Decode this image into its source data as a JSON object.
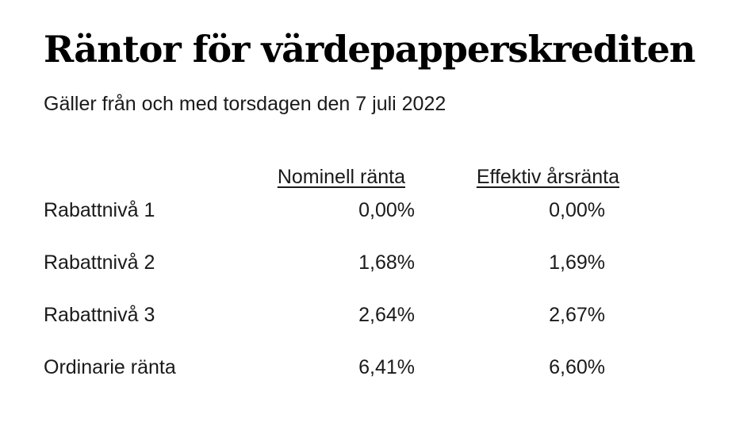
{
  "page": {
    "title": "Räntor för värdepapperskrediten",
    "subtitle": "Gäller från och med torsdagen den 7 juli 2022"
  },
  "rates_table": {
    "columns": {
      "label": "",
      "nominal": "Nominell ränta",
      "effective": "Effektiv årsränta"
    },
    "rows": [
      {
        "label": "Rabattnivå 1",
        "nominal": "0,00%",
        "effective": "0,00%"
      },
      {
        "label": "Rabattnivå 2",
        "nominal": "1,68%",
        "effective": "1,69%"
      },
      {
        "label": "Rabattnivå 3",
        "nominal": "2,64%",
        "effective": "2,67%"
      },
      {
        "label": "Ordinarie ränta",
        "nominal": "6,41%",
        "effective": "6,60%"
      }
    ]
  },
  "colors": {
    "background": "#ffffff",
    "title_text": "#000000",
    "body_text": "#1a1a1a"
  }
}
